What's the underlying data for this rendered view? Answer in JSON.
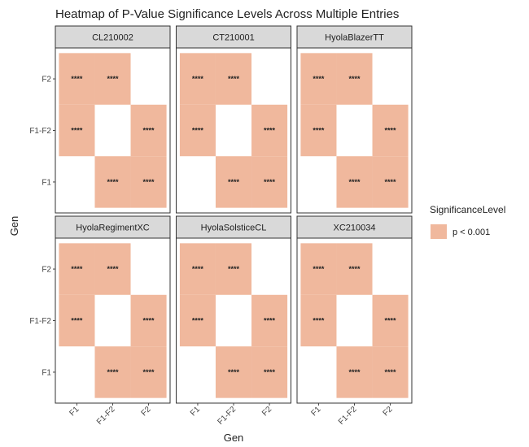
{
  "chart_data": {
    "type": "heatmap",
    "title": "Heatmap of P-Value Significance Levels Across Multiple Entries",
    "xlabel": "Gen",
    "ylabel": "Gen",
    "x_categories": [
      "F1",
      "F1-F2",
      "F2"
    ],
    "y_categories": [
      "F1",
      "F1-F2",
      "F2"
    ],
    "legend": {
      "title": "SignificanceLevel",
      "placement": "right",
      "items": [
        {
          "label": "p < 0.001",
          "color": "#F0B89D"
        }
      ]
    },
    "grid": false,
    "facets": [
      {
        "name": "CL210002",
        "cells": [
          {
            "x": "F1",
            "y": "F2",
            "level": "p < 0.001",
            "label": "****"
          },
          {
            "x": "F1-F2",
            "y": "F2",
            "level": "p < 0.001",
            "label": "****"
          },
          {
            "x": "F1",
            "y": "F1-F2",
            "level": "p < 0.001",
            "label": "****"
          },
          {
            "x": "F2",
            "y": "F1-F2",
            "level": "p < 0.001",
            "label": "****"
          },
          {
            "x": "F1-F2",
            "y": "F1",
            "level": "p < 0.001",
            "label": "****"
          },
          {
            "x": "F2",
            "y": "F1",
            "level": "p < 0.001",
            "label": "****"
          }
        ]
      },
      {
        "name": "CT210001",
        "cells": [
          {
            "x": "F1",
            "y": "F2",
            "level": "p < 0.001",
            "label": "****"
          },
          {
            "x": "F1-F2",
            "y": "F2",
            "level": "p < 0.001",
            "label": "****"
          },
          {
            "x": "F1",
            "y": "F1-F2",
            "level": "p < 0.001",
            "label": "****"
          },
          {
            "x": "F2",
            "y": "F1-F2",
            "level": "p < 0.001",
            "label": "****"
          },
          {
            "x": "F1-F2",
            "y": "F1",
            "level": "p < 0.001",
            "label": "****"
          },
          {
            "x": "F2",
            "y": "F1",
            "level": "p < 0.001",
            "label": "****"
          }
        ]
      },
      {
        "name": "HyolaBlazerTT",
        "cells": [
          {
            "x": "F1",
            "y": "F2",
            "level": "p < 0.001",
            "label": "****"
          },
          {
            "x": "F1-F2",
            "y": "F2",
            "level": "p < 0.001",
            "label": "****"
          },
          {
            "x": "F1",
            "y": "F1-F2",
            "level": "p < 0.001",
            "label": "****"
          },
          {
            "x": "F2",
            "y": "F1-F2",
            "level": "p < 0.001",
            "label": "****"
          },
          {
            "x": "F1-F2",
            "y": "F1",
            "level": "p < 0.001",
            "label": "****"
          },
          {
            "x": "F2",
            "y": "F1",
            "level": "p < 0.001",
            "label": "****"
          }
        ]
      },
      {
        "name": "HyolaRegimentXC",
        "cells": [
          {
            "x": "F1",
            "y": "F2",
            "level": "p < 0.001",
            "label": "****"
          },
          {
            "x": "F1-F2",
            "y": "F2",
            "level": "p < 0.001",
            "label": "****"
          },
          {
            "x": "F1",
            "y": "F1-F2",
            "level": "p < 0.001",
            "label": "****"
          },
          {
            "x": "F2",
            "y": "F1-F2",
            "level": "p < 0.001",
            "label": "****"
          },
          {
            "x": "F1-F2",
            "y": "F1",
            "level": "p < 0.001",
            "label": "****"
          },
          {
            "x": "F2",
            "y": "F1",
            "level": "p < 0.001",
            "label": "****"
          }
        ]
      },
      {
        "name": "HyolaSolsticeCL",
        "cells": [
          {
            "x": "F1",
            "y": "F2",
            "level": "p < 0.001",
            "label": "****"
          },
          {
            "x": "F1-F2",
            "y": "F2",
            "level": "p < 0.001",
            "label": "****"
          },
          {
            "x": "F1",
            "y": "F1-F2",
            "level": "p < 0.001",
            "label": "****"
          },
          {
            "x": "F2",
            "y": "F1-F2",
            "level": "p < 0.001",
            "label": "****"
          },
          {
            "x": "F1-F2",
            "y": "F1",
            "level": "p < 0.001",
            "label": "****"
          },
          {
            "x": "F2",
            "y": "F1",
            "level": "p < 0.001",
            "label": "****"
          }
        ]
      },
      {
        "name": "XC210034",
        "cells": [
          {
            "x": "F1",
            "y": "F2",
            "level": "p < 0.001",
            "label": "****"
          },
          {
            "x": "F1-F2",
            "y": "F2",
            "level": "p < 0.001",
            "label": "****"
          },
          {
            "x": "F1",
            "y": "F1-F2",
            "level": "p < 0.001",
            "label": "****"
          },
          {
            "x": "F2",
            "y": "F1-F2",
            "level": "p < 0.001",
            "label": "****"
          },
          {
            "x": "F1-F2",
            "y": "F1",
            "level": "p < 0.001",
            "label": "****"
          },
          {
            "x": "F2",
            "y": "F1",
            "level": "p < 0.001",
            "label": "****"
          }
        ]
      }
    ]
  }
}
